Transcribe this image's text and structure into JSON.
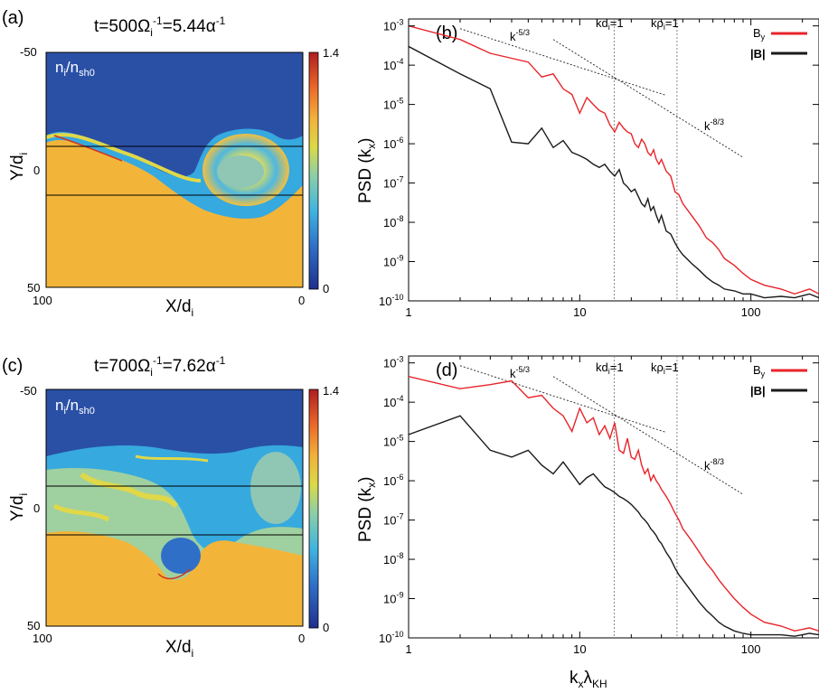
{
  "panels": {
    "a": {
      "label": "(a)",
      "title": "t=500Ω",
      "title_sub": "i",
      "title_sup": "-1",
      "title_rest": "=5.44α",
      "title_sup2": "-1",
      "field": "n",
      "field_sub": "i",
      "field_mid": "/n",
      "field_sub2": "sh0"
    },
    "b": {
      "label": "(b)"
    },
    "c": {
      "label": "(c)",
      "title": "t=700Ω",
      "title_sub": "i",
      "title_sup": "-1",
      "title_rest": "=7.62α",
      "title_sup2": "-1",
      "field": "n",
      "field_sub": "i",
      "field_mid": "/n",
      "field_sub2": "sh0"
    },
    "d": {
      "label": "(d)"
    }
  },
  "density_axes": {
    "xlabel": "X/d",
    "xlabel_sub": "i",
    "ylabel": "Y/d",
    "ylabel_sub": "i",
    "xticks": [
      "100",
      "0"
    ],
    "yticks": [
      "-50",
      "0",
      "50"
    ],
    "colorbar_ticks": [
      "1.4",
      "0"
    ],
    "colorbar_range": [
      0,
      1.4
    ],
    "colors": {
      "low": "#2b4fa8",
      "mid": "#d9d94a",
      "high": "#c8201f",
      "dense": "#f2b63a"
    }
  },
  "spectrum_axes": {
    "ylabel": "PSD (k",
    "ylabel_sub": "x",
    "ylabel_end": ")",
    "xlabel": "k",
    "xlabel_sub": "x",
    "xlabel_mid": "λ",
    "xlabel_sub2": "KH",
    "xticks": [
      "1",
      "10",
      "100"
    ],
    "yticks": [
      {
        "base": "10",
        "exp": "-3"
      },
      {
        "base": "10",
        "exp": "-4"
      },
      {
        "base": "10",
        "exp": "-5"
      },
      {
        "base": "10",
        "exp": "-6"
      },
      {
        "base": "10",
        "exp": "-7"
      },
      {
        "base": "10",
        "exp": "-8"
      },
      {
        "base": "10",
        "exp": "-9"
      },
      {
        "base": "10",
        "exp": "-10"
      }
    ],
    "annotations": {
      "k53": {
        "base": "k",
        "exp": "-5/3"
      },
      "k83": {
        "base": "k",
        "exp": "-8/3"
      },
      "kdi": {
        "text": "kd",
        "sub": "i",
        "end": "=1"
      },
      "krhoi": {
        "text": "kρ",
        "sub": "i",
        "end": "=1"
      }
    },
    "legend": {
      "by": {
        "text": "B",
        "sub": "y"
      },
      "bmag": "|B|"
    },
    "colors": {
      "by": "#e8242a",
      "bmag": "#1a1a1a"
    }
  },
  "chart_data": [
    {
      "type": "heatmap",
      "panel": "(a)",
      "title": "t=500Ωi-1=5.44α-1",
      "field": "ni/nsh0",
      "xlabel": "X/di",
      "ylabel": "Y/di",
      "xlim": [
        100,
        0
      ],
      "ylim": [
        -50,
        50
      ],
      "colorbar": [
        0,
        1.4
      ]
    },
    {
      "type": "line",
      "panel": "(b)",
      "xlabel": "kxλKH",
      "ylabel": "PSD (kx)",
      "xscale": "log",
      "yscale": "log",
      "xlim": [
        1,
        250
      ],
      "ylim": [
        1e-10,
        0.0015
      ],
      "vlines": [
        {
          "x": 15.9,
          "label": "kdi=1"
        },
        {
          "x": 37,
          "label": "kρi=1"
        }
      ],
      "guides": [
        {
          "label": "k-5/3",
          "x": [
            2,
            32
          ],
          "y": [
            0.00085,
            1.7e-05
          ]
        },
        {
          "label": "k-8/3",
          "x": [
            7,
            90
          ],
          "y": [
            0.00045,
            4.5e-07
          ]
        }
      ],
      "series": [
        {
          "name": "By",
          "x": [
            1,
            2,
            3,
            4,
            5,
            6,
            7,
            8,
            9,
            10,
            11,
            12,
            13,
            14,
            15,
            16,
            17,
            18,
            19,
            20,
            21,
            22,
            23,
            24,
            25,
            26,
            27,
            28,
            29,
            30,
            32,
            34,
            36,
            38,
            40,
            45,
            50,
            55,
            60,
            65,
            70,
            80,
            90,
            100,
            120,
            150,
            180,
            220,
            250
          ],
          "y": [
            0.001,
            0.00045,
            0.0002,
            0.00015,
            0.00012,
            5e-05,
            6e-05,
            2.5e-05,
            1.8e-05,
            6e-06,
            1.5e-05,
            1e-05,
            7e-06,
            6e-06,
            3e-06,
            2e-06,
            3.5e-06,
            2.5e-06,
            2e-06,
            1.8e-06,
            1e-06,
            8e-07,
            1.3e-06,
            1e-06,
            6e-07,
            5e-07,
            7e-07,
            4e-07,
            3e-07,
            4e-07,
            2e-07,
            1.5e-07,
            6e-08,
            5e-08,
            3e-08,
            1.5e-08,
            8e-09,
            4e-09,
            3e-09,
            2e-09,
            1.2e-09,
            8e-10,
            5e-10,
            3.5e-10,
            2.5e-10,
            2e-10,
            1.5e-10,
            2e-10,
            1.5e-10
          ]
        },
        {
          "name": "|B|",
          "x": [
            1,
            2,
            3,
            4,
            5,
            6,
            7,
            8,
            9,
            10,
            11,
            12,
            13,
            14,
            15,
            16,
            17,
            18,
            19,
            20,
            21,
            22,
            23,
            24,
            25,
            26,
            27,
            28,
            29,
            30,
            32,
            34,
            36,
            38,
            40,
            45,
            50,
            55,
            60,
            65,
            70,
            80,
            90,
            100,
            120,
            150,
            180,
            220,
            250
          ],
          "y": [
            0.0003,
            6e-05,
            2.5e-05,
            1.1e-06,
            1e-06,
            2.5e-06,
            8e-07,
            1.2e-06,
            6e-07,
            5e-07,
            4e-07,
            3e-07,
            2.5e-07,
            3e-07,
            2e-07,
            1.5e-07,
            2.2e-07,
            1e-07,
            8e-08,
            6e-08,
            7e-08,
            4.5e-08,
            3e-08,
            2.5e-08,
            4e-08,
            2e-08,
            2.5e-08,
            1.5e-08,
            1e-08,
            1.5e-08,
            6e-09,
            5e-09,
            3e-09,
            2e-09,
            1.5e-09,
            9e-10,
            6e-10,
            4e-10,
            3e-10,
            2.5e-10,
            2e-10,
            1.8e-10,
            1.5e-10,
            1.5e-10,
            1.2e-10,
            1.3e-10,
            1.2e-10,
            1.5e-10,
            1.2e-10
          ]
        }
      ]
    },
    {
      "type": "heatmap",
      "panel": "(c)",
      "title": "t=700Ωi-1=7.62α-1",
      "field": "ni/nsh0",
      "xlabel": "X/di",
      "ylabel": "Y/di",
      "xlim": [
        100,
        0
      ],
      "ylim": [
        -50,
        50
      ],
      "colorbar": [
        0,
        1.4
      ]
    },
    {
      "type": "line",
      "panel": "(d)",
      "xlabel": "kxλKH",
      "ylabel": "PSD (kx)",
      "xscale": "log",
      "yscale": "log",
      "xlim": [
        1,
        250
      ],
      "ylim": [
        1e-10,
        0.0015
      ],
      "vlines": [
        {
          "x": 15.9,
          "label": "kdi=1"
        },
        {
          "x": 37,
          "label": "kρi=1"
        }
      ],
      "guides": [
        {
          "label": "k-5/3",
          "x": [
            2,
            32
          ],
          "y": [
            0.00085,
            1.7e-05
          ]
        },
        {
          "label": "k-8/3",
          "x": [
            7,
            90
          ],
          "y": [
            0.00045,
            4.5e-07
          ]
        }
      ],
      "series": [
        {
          "name": "By",
          "x": [
            1,
            2,
            3,
            4,
            5,
            6,
            7,
            8,
            9,
            10,
            11,
            12,
            13,
            14,
            15,
            16,
            17,
            18,
            19,
            20,
            21,
            22,
            23,
            24,
            25,
            26,
            27,
            28,
            29,
            30,
            32,
            34,
            36,
            38,
            40,
            45,
            50,
            55,
            60,
            65,
            70,
            80,
            90,
            100,
            120,
            150,
            180,
            220,
            250
          ],
          "y": [
            0.00045,
            0.00022,
            0.00028,
            0.00035,
            0.00013,
            0.00015,
            7e-05,
            4.5e-05,
            1.8e-05,
            7e-05,
            3e-05,
            4e-05,
            1.5e-05,
            2.5e-05,
            1.2e-05,
            3e-05,
            6e-06,
            5e-06,
            1.2e-05,
            4e-06,
            3.5e-06,
            6e-06,
            2.5e-06,
            1.5e-06,
            2e-06,
            1e-06,
            1.4e-06,
            1e-06,
            8e-07,
            6e-07,
            4e-07,
            2.5e-07,
            1.5e-07,
            1e-07,
            6e-08,
            3e-08,
            1.5e-08,
            8e-09,
            5e-09,
            3e-09,
            2e-09,
            1e-09,
            6e-10,
            4e-10,
            2.5e-10,
            2e-10,
            1.5e-10,
            1.8e-10,
            1.5e-10
          ]
        },
        {
          "name": "|B|",
          "x": [
            1,
            2,
            3,
            4,
            5,
            6,
            7,
            8,
            9,
            10,
            11,
            12,
            13,
            14,
            15,
            16,
            17,
            18,
            19,
            20,
            21,
            22,
            23,
            24,
            25,
            26,
            27,
            28,
            29,
            30,
            32,
            34,
            36,
            38,
            40,
            45,
            50,
            55,
            60,
            65,
            70,
            80,
            90,
            100,
            120,
            150,
            180,
            220,
            250
          ],
          "y": [
            1.5e-05,
            4.5e-05,
            6e-06,
            4e-06,
            6e-06,
            2.5e-06,
            1.5e-06,
            3e-06,
            1.5e-06,
            8e-07,
            1.2e-06,
            1.5e-06,
            1e-06,
            7e-07,
            6e-07,
            5e-07,
            4e-07,
            3.5e-07,
            3e-07,
            2.5e-07,
            2e-07,
            1.6e-07,
            1.2e-07,
            1e-07,
            8e-08,
            6e-08,
            5e-08,
            4e-08,
            3e-08,
            2.5e-08,
            1.5e-08,
            1e-08,
            6e-09,
            4e-09,
            3e-09,
            1.5e-09,
            8e-10,
            5e-10,
            3.5e-10,
            2.5e-10,
            2e-10,
            1.5e-10,
            1.3e-10,
            1.2e-10,
            1.2e-10,
            1.2e-10,
            1.1e-10,
            1.3e-10,
            1.2e-10
          ]
        }
      ]
    }
  ]
}
